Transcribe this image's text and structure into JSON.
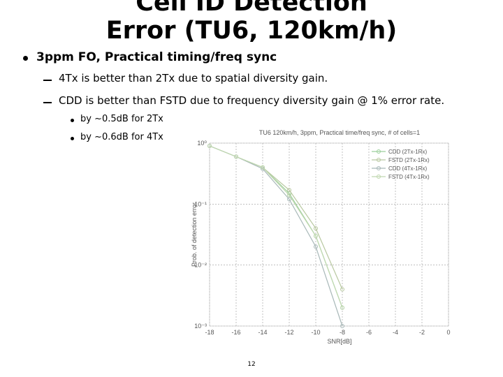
{
  "title": "Cell ID Detection Error (TU6, 120km/h)",
  "bullet": "3ppm FO, Practical timing/freq sync",
  "sub_bullets": [
    "4Tx is better than 2Tx due to spatial diversity gain.",
    "CDD is better than FSTD due to frequency diversity gain @ 1% error rate."
  ],
  "sub_sub_bullets": [
    "by ~0.5dB for 2Tx",
    "by ~0.6dB for 4Tx"
  ],
  "page_number": "12",
  "chart_data": {
    "type": "line",
    "title": "TU6 120km/h, 3ppm, Practical time/freq sync, # of cells=1",
    "x_label": "SNR[dB]",
    "y_label": "Prob. of detection error",
    "x": [
      -18,
      -16,
      -14,
      -12,
      -10,
      -8
    ],
    "series": [
      {
        "name": "CDD (2Tx-1Rx)",
        "color": "#9ccf9c",
        "values": [
          0.9,
          0.6,
          0.4,
          0.15,
          0.03,
          0.002
        ]
      },
      {
        "name": "FSTD (2Tx-1Rx)",
        "color": "#b8c8a0",
        "values": [
          0.9,
          0.6,
          0.4,
          0.17,
          0.04,
          0.004
        ]
      },
      {
        "name": "CDD (4Tx-1Rx)",
        "color": "#a8b8b8",
        "values": [
          0.9,
          0.6,
          0.38,
          0.12,
          0.02,
          0.001
        ]
      },
      {
        "name": "FSTD (4Tx-1Rx)",
        "color": "#c0d8b0",
        "values": [
          0.9,
          0.6,
          0.4,
          0.14,
          0.03,
          0.002
        ]
      }
    ],
    "xlim": [
      -18,
      0
    ],
    "xticks": [
      -18,
      -16,
      -14,
      -12,
      -10,
      -8,
      -6,
      -4,
      -2,
      0
    ],
    "ylim": [
      0.001,
      1
    ],
    "log_y": true,
    "yticks": [
      {
        "value": 0.001,
        "label": "10⁻³"
      },
      {
        "value": 0.01,
        "label": "10⁻²"
      },
      {
        "value": 0.1,
        "label": "10⁻¹"
      },
      {
        "value": 1,
        "label": "10⁰"
      }
    ],
    "grid": true,
    "legend": "upper right"
  }
}
